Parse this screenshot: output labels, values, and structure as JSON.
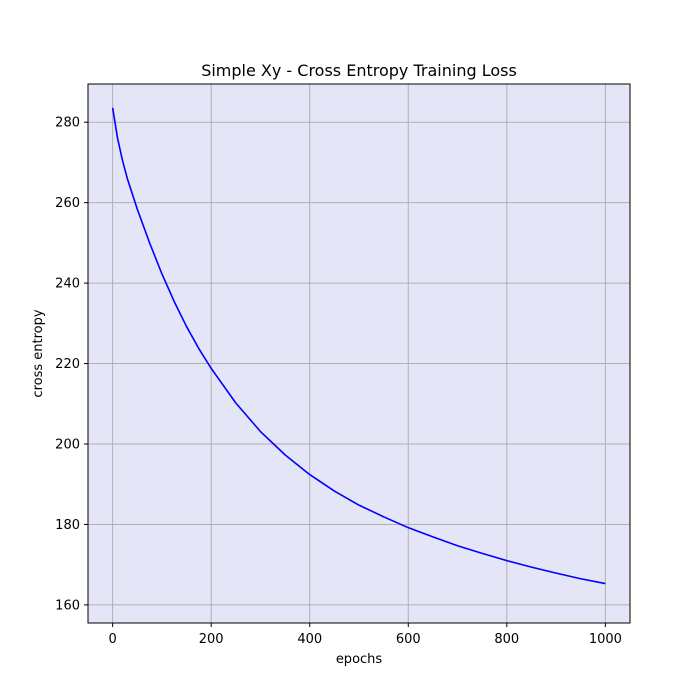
{
  "chart_data": {
    "type": "line",
    "title": "Simple Xy - Cross Entropy Training Loss",
    "xlabel": "epochs",
    "ylabel": "cross entropy",
    "xlim": [
      -50,
      1050
    ],
    "ylim": [
      155.5,
      289.5
    ],
    "xticks": [
      0,
      200,
      400,
      600,
      800,
      1000
    ],
    "yticks": [
      160,
      180,
      200,
      220,
      240,
      260,
      280
    ],
    "grid": true,
    "series": [
      {
        "line_color": "#0000ff",
        "x": [
          0,
          10,
          20,
          30,
          50,
          75,
          100,
          125,
          150,
          175,
          200,
          250,
          300,
          350,
          400,
          450,
          500,
          550,
          600,
          650,
          700,
          750,
          800,
          850,
          900,
          950,
          1000
        ],
        "y": [
          283.6,
          276,
          270.5,
          265.9,
          258.4,
          250,
          242.3,
          235.4,
          229.2,
          223.7,
          218.8,
          210.2,
          203.1,
          197.3,
          192.4,
          188.3,
          184.8,
          181.9,
          179.2,
          176.9,
          174.7,
          172.8,
          171,
          169.4,
          167.9,
          166.5,
          165.3
        ]
      }
    ]
  },
  "style": {
    "plot_background": "#e5e5f8",
    "grid_color": "#b0b0b0",
    "axes_color": "#000000"
  }
}
